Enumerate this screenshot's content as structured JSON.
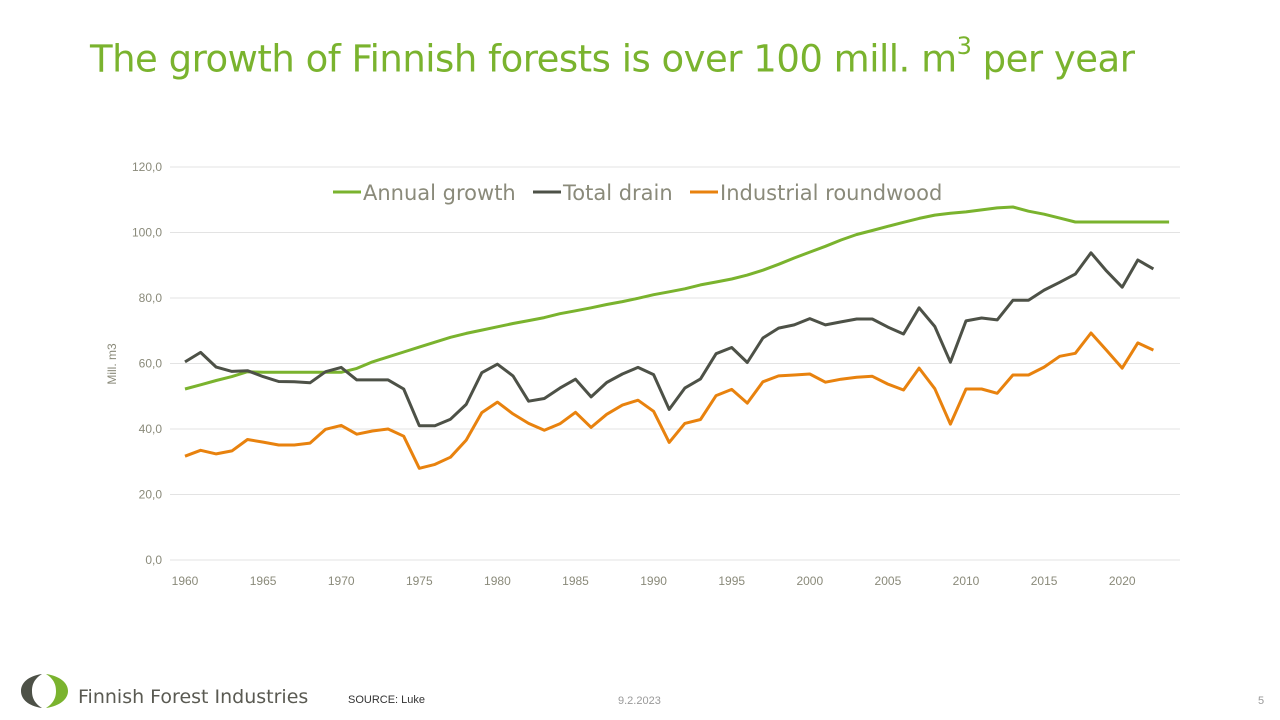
{
  "slide": {
    "title_main": "The growth of Finnish forests is over 100 mill. m",
    "title_sup": "3",
    "title_end": " per year",
    "brand": "Finnish Forest Industries",
    "source": "SOURCE:  Luke",
    "date": "9.2.2023",
    "page_number": "5"
  },
  "chart_data": {
    "type": "line",
    "title": "",
    "xlabel": "",
    "ylabel": "Mill. m3",
    "ylim": [
      0,
      120
    ],
    "yticks": [
      "0,0",
      "20,0",
      "40,0",
      "60,0",
      "80,0",
      "100,0",
      "120,0"
    ],
    "xticks": [
      "1960",
      "1965",
      "1970",
      "1975",
      "1980",
      "1985",
      "1990",
      "1995",
      "2000",
      "2005",
      "2010",
      "2015",
      "2020"
    ],
    "grid": true,
    "legend_position": "top",
    "x": [
      1960,
      1961,
      1962,
      1963,
      1964,
      1965,
      1966,
      1967,
      1968,
      1969,
      1970,
      1971,
      1972,
      1973,
      1974,
      1975,
      1976,
      1977,
      1978,
      1979,
      1980,
      1981,
      1982,
      1983,
      1984,
      1985,
      1986,
      1987,
      1988,
      1989,
      1990,
      1991,
      1992,
      1993,
      1994,
      1995,
      1996,
      1997,
      1998,
      1999,
      2000,
      2001,
      2002,
      2003,
      2004,
      2005,
      2006,
      2007,
      2008,
      2009,
      2010,
      2011,
      2012,
      2013,
      2014,
      2015,
      2016,
      2017,
      2018,
      2019,
      2020,
      2021,
      2022,
      2023
    ],
    "series": [
      {
        "name": "Annual growth",
        "color": "#7ab32e",
        "values": [
          52.2,
          53.5,
          54.8,
          56,
          57.5,
          57.3,
          57.3,
          57.3,
          57.3,
          57.3,
          57.3,
          58.5,
          60.5,
          62,
          63.5,
          65,
          66.5,
          68,
          69.2,
          70.2,
          71.2,
          72.2,
          73.1,
          74,
          75.2,
          76.1,
          77,
          78,
          78.9,
          79.9,
          81,
          81.9,
          82.8,
          84,
          84.9,
          85.8,
          87,
          88.5,
          90.3,
          92.2,
          94,
          95.8,
          97.7,
          99.4,
          100.6,
          101.9,
          103.1,
          104.3,
          105.3,
          105.9,
          106.3,
          106.9,
          107.5,
          107.8,
          106.5,
          105.6,
          104.4,
          103.2,
          103.2,
          103.2,
          103.2,
          103.2,
          103.2,
          103.2
        ]
      },
      {
        "name": "Total drain",
        "color": "#4d5147",
        "values": [
          60.5,
          63.4,
          58.9,
          57.6,
          57.8,
          56,
          54.5,
          54.4,
          54.1,
          57.5,
          58.8,
          55,
          55,
          55,
          52.2,
          41,
          41,
          43,
          47.5,
          57.2,
          59.8,
          56.2,
          48.5,
          49.3,
          52.5,
          55.2,
          49.8,
          54.2,
          56.8,
          58.8,
          56.6,
          46,
          52.5,
          55.3,
          63,
          64.9,
          60.3,
          67.8,
          70.8,
          71.8,
          73.7,
          71.8,
          72.7,
          73.6,
          73.6,
          71.1,
          69,
          77,
          71.3,
          60.4,
          73,
          73.9,
          73.3,
          79.3,
          79.3,
          82.4,
          84.8,
          87.3,
          93.8,
          88.2,
          83.3,
          91.6,
          88.9,
          null
        ]
      },
      {
        "name": "Industrial roundwood",
        "color": "#e8820e",
        "values": [
          31.7,
          33.5,
          32.4,
          33.3,
          36.8,
          36,
          35.1,
          35.1,
          35.7,
          39.9,
          41.1,
          38.4,
          39.4,
          40,
          37.8,
          28,
          29.2,
          31.4,
          36.6,
          45,
          48.2,
          44.6,
          41.7,
          39.6,
          41.6,
          45.1,
          40.5,
          44.5,
          47.3,
          48.8,
          45.4,
          35.9,
          41.7,
          42.9,
          50.2,
          52.1,
          47.9,
          54.4,
          56.2,
          56.5,
          56.8,
          54.3,
          55.2,
          55.8,
          56.1,
          53.7,
          51.9,
          58.6,
          52.3,
          41.5,
          52.2,
          52.2,
          50.9,
          56.5,
          56.5,
          58.9,
          62.2,
          63.1,
          69.3,
          64,
          58.6,
          66.3,
          64.1,
          null
        ]
      }
    ]
  }
}
